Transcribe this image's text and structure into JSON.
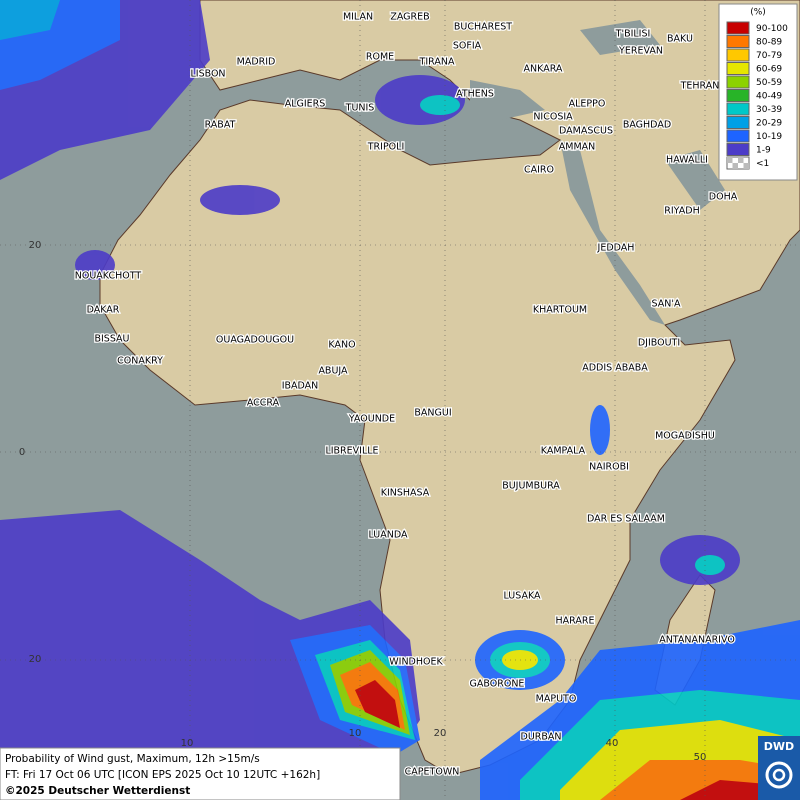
{
  "cities": [
    "MILAN",
    "ZAGREB",
    "BUCHAREST",
    "SOFIA",
    "T'BILISI",
    "BAKU",
    "YEREVAN",
    "LISBON",
    "MADRID",
    "ROME",
    "TIRANA",
    "ANKARA",
    "TEHRAN",
    "ALGIERS",
    "TUNIS",
    "ATHENS",
    "ALEPPO",
    "RABAT",
    "NICOSIA",
    "DAMASCUS",
    "BAGHDAD",
    "TRIPOLI",
    "AMMAN",
    "HAWALLI",
    "CAIRO",
    "DOHA",
    "RIYADH",
    "JEDDAH",
    "NOUAKCHOTT",
    "DAKAR",
    "BISSAU",
    "CONAKRY",
    "OUAGADOUGOU",
    "KANO",
    "ABUJA",
    "IBADAN",
    "ACCRA",
    "KHARTOUM",
    "SAN'A",
    "DJIBOUTI",
    "ADDIS ABABA",
    "YAOUNDE",
    "BANGUI",
    "MOGADISHU",
    "LIBREVILLE",
    "KAMPALA",
    "NAIROBI",
    "KINSHASA",
    "BUJUMBURA",
    "DAR ES SALAAM",
    "LUANDA",
    "LUSAKA",
    "HARARE",
    "ANTANANARIVO",
    "WINDHOEK",
    "GABORONE",
    "MAPUTO",
    "DURBAN",
    "CAPETOWN"
  ],
  "grid_labels": [
    "20",
    "0",
    "20",
    "10",
    "10",
    "20",
    "40",
    "50"
  ],
  "legend": {
    "title": "(%)",
    "entries": [
      {
        "label": "90-100",
        "color": "#c80000"
      },
      {
        "label": "80-89",
        "color": "#ff7800"
      },
      {
        "label": "70-79",
        "color": "#ffc800"
      },
      {
        "label": "60-69",
        "color": "#e6e600"
      },
      {
        "label": "50-59",
        "color": "#8cd200"
      },
      {
        "label": "40-49",
        "color": "#28b428"
      },
      {
        "label": "30-39",
        "color": "#00c8c8"
      },
      {
        "label": "20-29",
        "color": "#00a0e6"
      },
      {
        "label": "10-19",
        "color": "#1e64ff"
      },
      {
        "label": "1-9",
        "color": "#4c3cc8"
      },
      {
        "label": "<1",
        "color": "#bbbbbb"
      }
    ]
  },
  "footer": {
    "line1": "Probability of Wind gust, Maximum, 12h >15m/s",
    "line2": "FT: Fri 17 Oct 06 UTC [ICON EPS 2025 Oct 10 12UTC +162h]",
    "line3": "©2025 Deutscher Wetterdienst"
  },
  "logo": "DWD"
}
